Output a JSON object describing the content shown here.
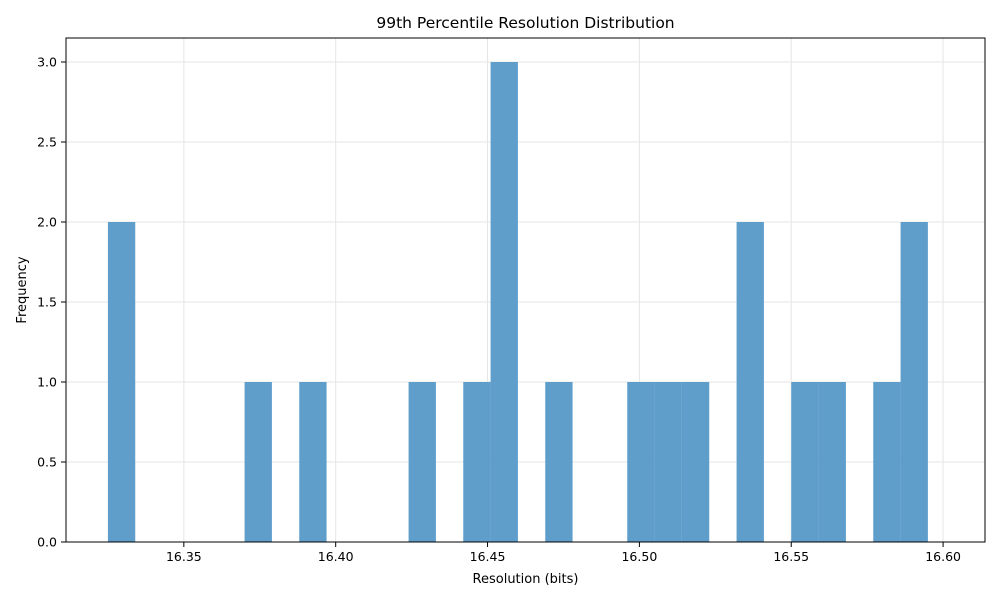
{
  "chart_data": {
    "type": "bar",
    "title": "99th Percentile Resolution Distribution",
    "xlabel": "Resolution (bits)",
    "ylabel": "Frequency",
    "xlim": [
      16.3112,
      16.6138
    ],
    "ylim": [
      0,
      3.15
    ],
    "xticks": [
      {
        "value": 16.35,
        "label": "16.35"
      },
      {
        "value": 16.4,
        "label": "16.40"
      },
      {
        "value": 16.45,
        "label": "16.45"
      },
      {
        "value": 16.5,
        "label": "16.50"
      },
      {
        "value": 16.55,
        "label": "16.55"
      },
      {
        "value": 16.6,
        "label": "16.60"
      }
    ],
    "yticks": [
      {
        "value": 0.0,
        "label": "0.0"
      },
      {
        "value": 0.5,
        "label": "0.5"
      },
      {
        "value": 1.0,
        "label": "1.0"
      },
      {
        "value": 1.5,
        "label": "1.5"
      },
      {
        "value": 2.0,
        "label": "2.0"
      },
      {
        "value": 2.5,
        "label": "2.5"
      },
      {
        "value": 3.0,
        "label": "3.0"
      }
    ],
    "grid": true,
    "bar_color": "#5f9ecb",
    "bins": [
      {
        "x0": 16.325,
        "x1": 16.334,
        "count": 2
      },
      {
        "x0": 16.334,
        "x1": 16.343,
        "count": 0
      },
      {
        "x0": 16.343,
        "x1": 16.352,
        "count": 0
      },
      {
        "x0": 16.352,
        "x1": 16.361,
        "count": 0
      },
      {
        "x0": 16.361,
        "x1": 16.37,
        "count": 0
      },
      {
        "x0": 16.37,
        "x1": 16.379,
        "count": 1
      },
      {
        "x0": 16.379,
        "x1": 16.388,
        "count": 0
      },
      {
        "x0": 16.388,
        "x1": 16.397,
        "count": 1
      },
      {
        "x0": 16.397,
        "x1": 16.406,
        "count": 0
      },
      {
        "x0": 16.406,
        "x1": 16.415,
        "count": 0
      },
      {
        "x0": 16.415,
        "x1": 16.424,
        "count": 0
      },
      {
        "x0": 16.424,
        "x1": 16.433,
        "count": 1
      },
      {
        "x0": 16.433,
        "x1": 16.442,
        "count": 0
      },
      {
        "x0": 16.442,
        "x1": 16.451,
        "count": 1
      },
      {
        "x0": 16.451,
        "x1": 16.46,
        "count": 3
      },
      {
        "x0": 16.46,
        "x1": 16.469,
        "count": 0
      },
      {
        "x0": 16.469,
        "x1": 16.478,
        "count": 1
      },
      {
        "x0": 16.478,
        "x1": 16.487,
        "count": 0
      },
      {
        "x0": 16.487,
        "x1": 16.496,
        "count": 0
      },
      {
        "x0": 16.496,
        "x1": 16.505,
        "count": 1
      },
      {
        "x0": 16.505,
        "x1": 16.514,
        "count": 1
      },
      {
        "x0": 16.514,
        "x1": 16.523,
        "count": 1
      },
      {
        "x0": 16.523,
        "x1": 16.532,
        "count": 0
      },
      {
        "x0": 16.532,
        "x1": 16.541,
        "count": 2
      },
      {
        "x0": 16.541,
        "x1": 16.55,
        "count": 0
      },
      {
        "x0": 16.55,
        "x1": 16.559,
        "count": 1
      },
      {
        "x0": 16.559,
        "x1": 16.568,
        "count": 1
      },
      {
        "x0": 16.568,
        "x1": 16.577,
        "count": 0
      },
      {
        "x0": 16.577,
        "x1": 16.586,
        "count": 1
      },
      {
        "x0": 16.586,
        "x1": 16.595,
        "count": 2
      }
    ]
  }
}
